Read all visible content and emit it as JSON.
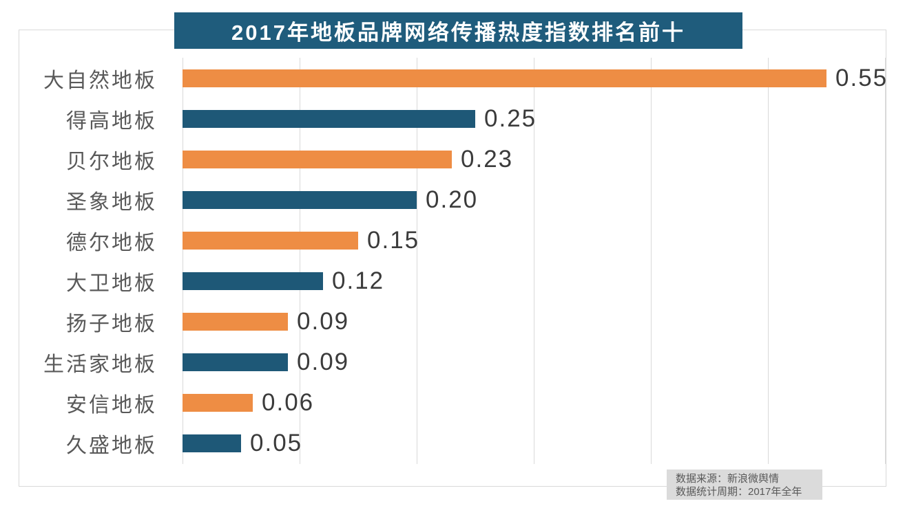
{
  "title": "2017年地板品牌网络传播热度指数排名前十",
  "source_note": {
    "line1": "数据来源：新浪微舆情",
    "line2": "数据统计周期：2017年全年"
  },
  "colors": {
    "title_bg": "#1F5C7C",
    "grid": "#D9D9D9",
    "frame_border": "#D9D9D9",
    "category_text": "#595959",
    "value_text": "#3B3B3B",
    "note_bg": "#DBDBDB",
    "note_text": "#595959"
  },
  "chart_data": {
    "type": "bar",
    "orientation": "horizontal",
    "title": "2017年地板品牌网络传播热度指数排名前十",
    "categories": [
      "大自然地板",
      "得高地板",
      "贝尔地板",
      "圣象地板",
      "德尔地板",
      "大卫地板",
      "扬子地板",
      "生活家地板",
      "安信地板",
      "久盛地板"
    ],
    "values": [
      0.55,
      0.25,
      0.23,
      0.2,
      0.15,
      0.12,
      0.09,
      0.09,
      0.06,
      0.05
    ],
    "value_labels": [
      "0.55",
      "0.25",
      "0.23",
      "0.20",
      "0.15",
      "0.12",
      "0.09",
      "0.09",
      "0.06",
      "0.05"
    ],
    "xlabel": "",
    "ylabel": "",
    "xlim": [
      0,
      0.6
    ],
    "grid_step": 0.1,
    "grid": true,
    "legend": false,
    "bar_palette": [
      "#EE8D44",
      "#1E5877"
    ]
  }
}
